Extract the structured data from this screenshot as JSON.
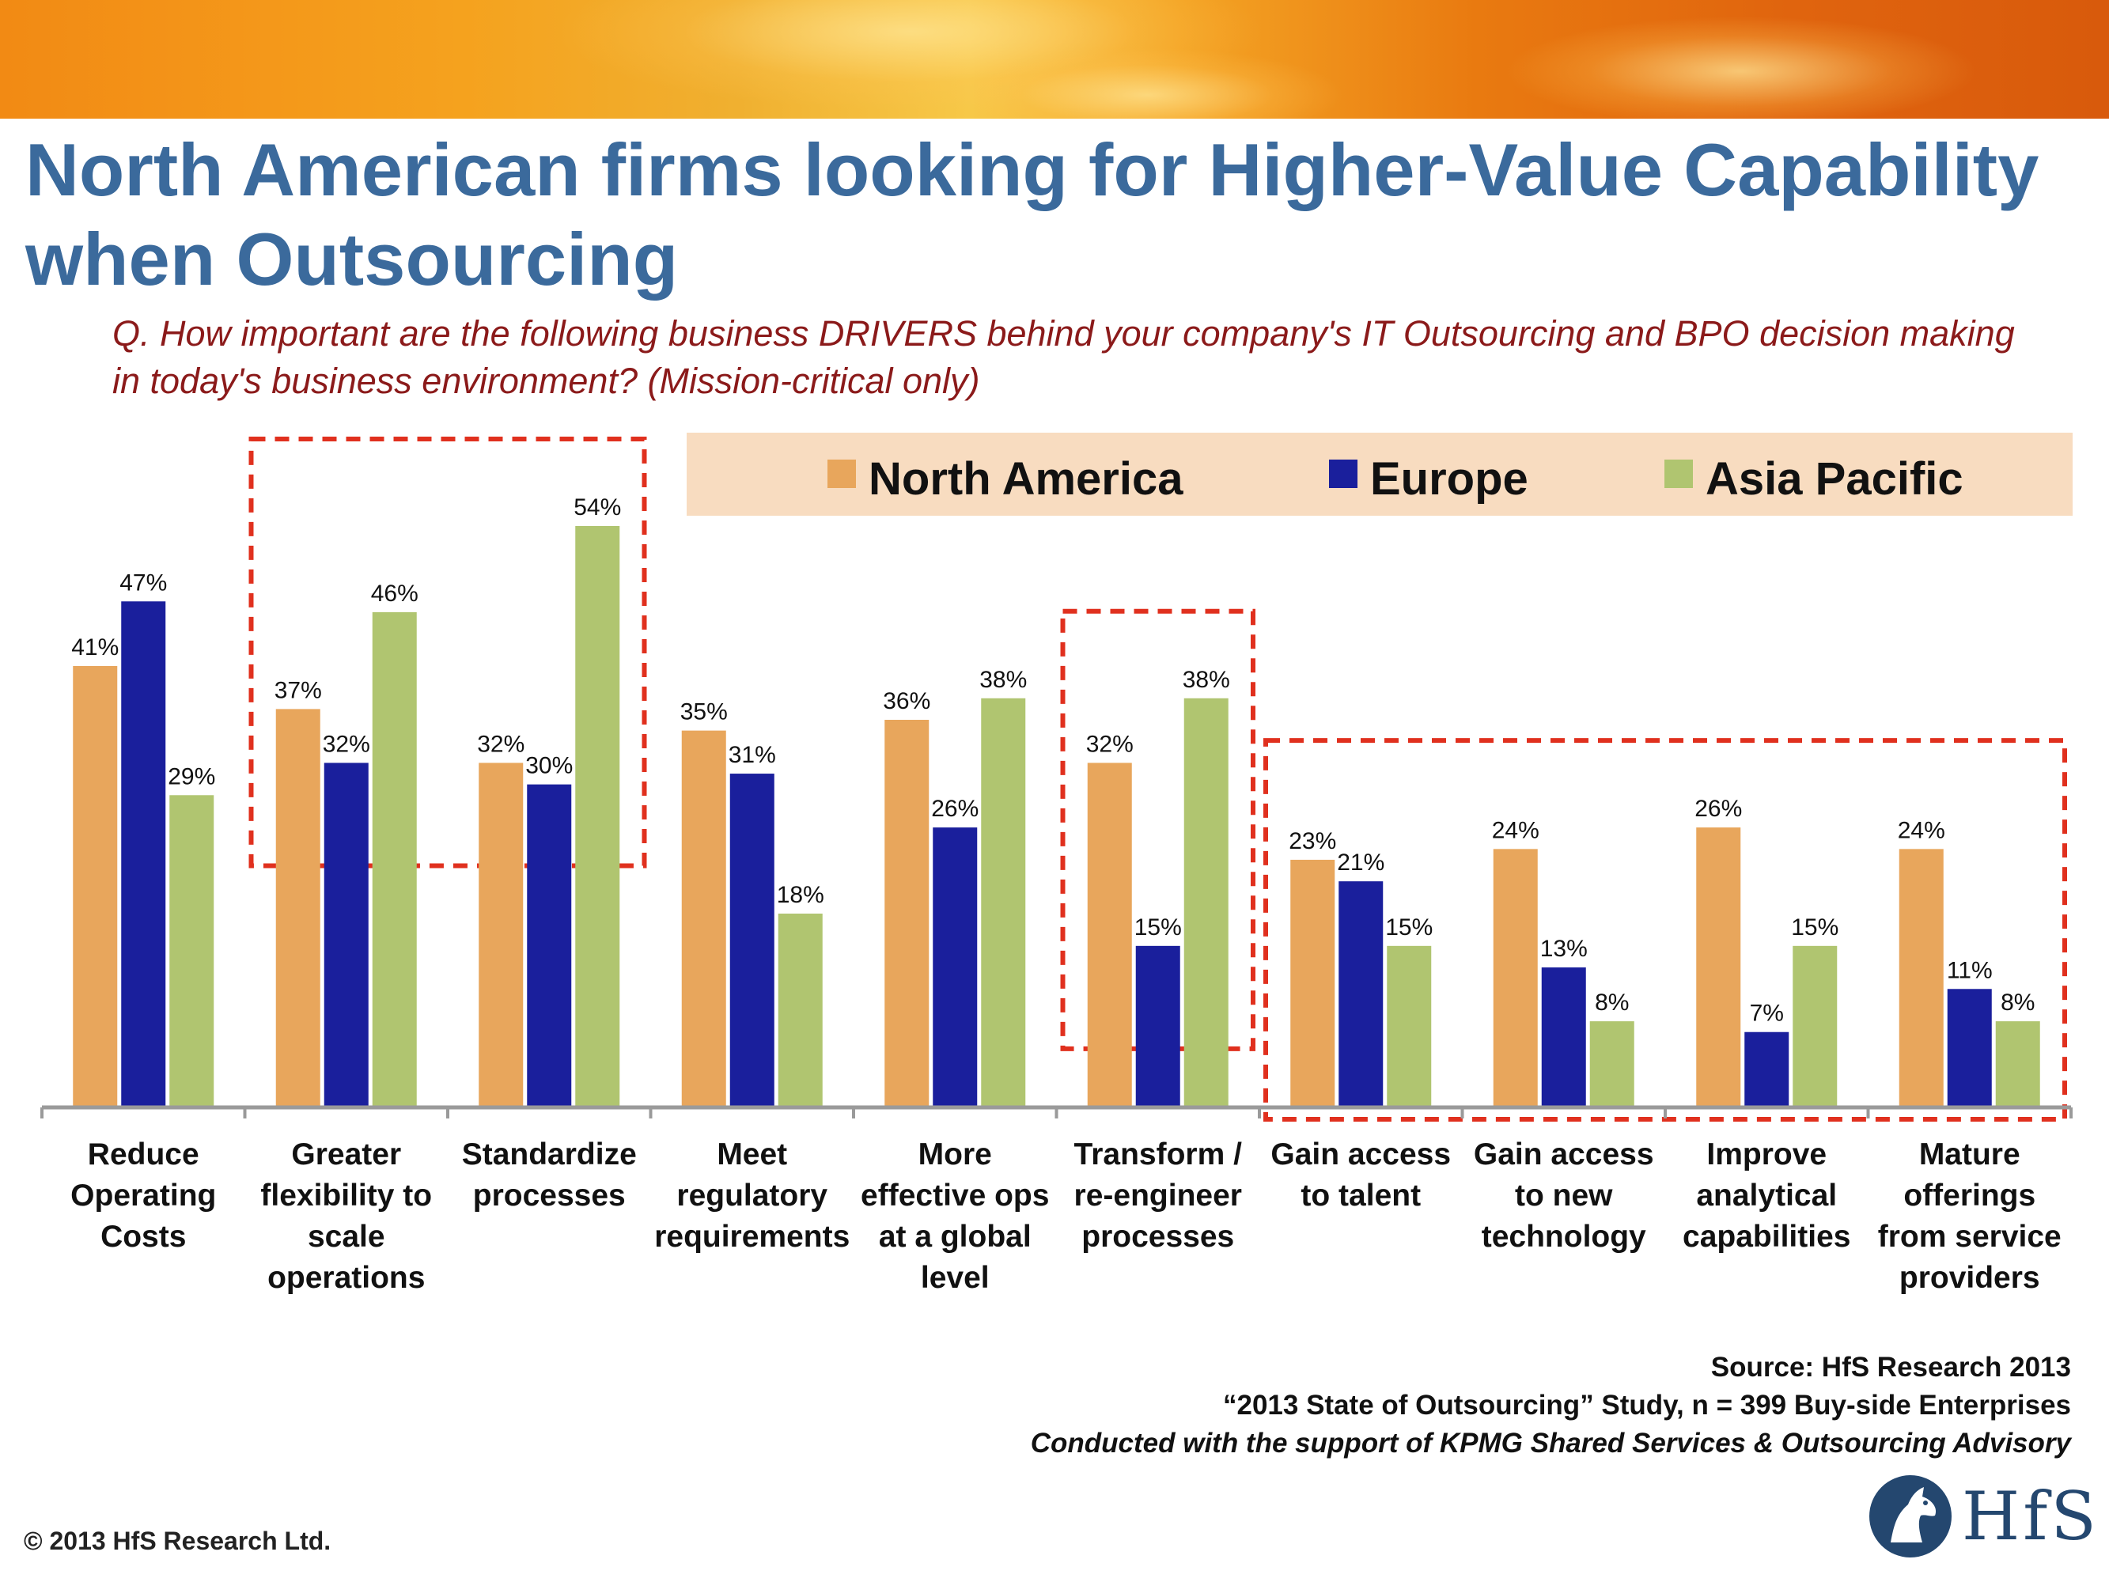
{
  "title": "North American firms looking for Higher-Value Capability when Outsourcing",
  "question": "Q. How important are the following business DRIVERS behind your company's IT Outsourcing and BPO decision making in today's business environment? (Mission-critical only)",
  "source": {
    "line1": "Source: HfS Research 2013",
    "line2": "“2013 State of Outsourcing” Study, n = 399 Buy-side Enterprises",
    "line3": "Conducted with the support of KPMG Shared Services & Outsourcing Advisory"
  },
  "copyright": "© 2013 HfS Research Ltd.",
  "logo": {
    "text": "HfS",
    "icon": "horse-head-icon"
  },
  "colors": {
    "north_america": "#e8a65c",
    "europe": "#1a1f9c",
    "asia_pacific": "#b0c570",
    "highlight": "#e0301e",
    "legend_bg": "#f8dcc0"
  },
  "chart_data": {
    "type": "bar",
    "categories": [
      [
        "Reduce",
        "Operating",
        "Costs"
      ],
      [
        "Greater",
        "flexibility to",
        "scale",
        "operations"
      ],
      [
        "Standardize",
        "processes"
      ],
      [
        "Meet",
        "regulatory",
        "requirements"
      ],
      [
        "More",
        "effective ops",
        "at a global",
        "level"
      ],
      [
        "Transform /",
        "re-engineer",
        "processes"
      ],
      [
        "Gain access",
        "to talent"
      ],
      [
        "Gain access",
        "to new",
        "technology"
      ],
      [
        "Improve",
        "analytical",
        "capabilities"
      ],
      [
        "Mature",
        "offerings",
        "from service",
        "providers"
      ]
    ],
    "series": [
      {
        "name": "North America",
        "color": "#e8a65c",
        "values": [
          41,
          37,
          32,
          35,
          36,
          32,
          23,
          24,
          26,
          24
        ]
      },
      {
        "name": "Europe",
        "color": "#1a1f9c",
        "values": [
          47,
          32,
          30,
          31,
          26,
          15,
          21,
          13,
          7,
          11
        ]
      },
      {
        "name": "Asia Pacific",
        "color": "#b0c570",
        "values": [
          29,
          46,
          54,
          18,
          38,
          38,
          15,
          8,
          15,
          8
        ]
      }
    ],
    "value_suffix": "%",
    "ylim": [
      0,
      54
    ],
    "legend": "top-right",
    "highlighted_groups": [
      [
        1,
        2
      ],
      [
        5,
        5
      ],
      [
        6,
        9
      ]
    ]
  }
}
